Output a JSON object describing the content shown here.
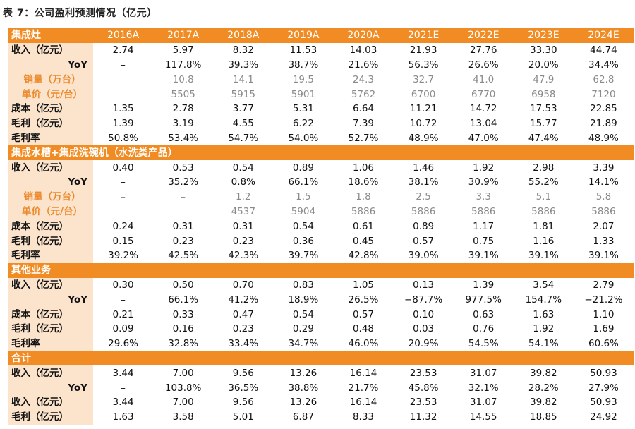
{
  "title": "表 7：公司盈利预测情况（亿元）",
  "header": {
    "label": "集成灶",
    "years": [
      "2016A",
      "2017A",
      "2018A",
      "2019A",
      "2020A",
      "2021E",
      "2022E",
      "2023E",
      "2024E"
    ]
  },
  "sections": [
    {
      "title": "",
      "rows": [
        {
          "label": "收入（亿元）",
          "style": "left",
          "values": [
            "2.74",
            "5.97",
            "8.32",
            "11.53",
            "14.03",
            "21.93",
            "27.76",
            "33.30",
            "44.74"
          ]
        },
        {
          "label": "YoY",
          "style": "right",
          "values": [
            "–",
            "117.8%",
            "39.3%",
            "38.7%",
            "21.6%",
            "56.3%",
            "26.6%",
            "20.0%",
            "34.4%"
          ]
        },
        {
          "label": "销量（万台）",
          "style": "sub",
          "values": [
            "–",
            "10.8",
            "14.1",
            "19.5",
            "24.3",
            "32.7",
            "41.0",
            "47.9",
            "62.8"
          ]
        },
        {
          "label": "单价（元/台）",
          "style": "sub",
          "values": [
            "–",
            "5505",
            "5915",
            "5901",
            "5762",
            "6700",
            "6770",
            "6958",
            "7120"
          ]
        },
        {
          "label": "成本（亿元）",
          "style": "left",
          "values": [
            "1.35",
            "2.78",
            "3.77",
            "5.31",
            "6.64",
            "11.21",
            "14.72",
            "17.53",
            "22.85"
          ]
        },
        {
          "label": "毛利（亿元）",
          "style": "left",
          "values": [
            "1.39",
            "3.19",
            "4.55",
            "6.22",
            "7.39",
            "10.72",
            "13.04",
            "15.77",
            "21.89"
          ]
        },
        {
          "label": "毛利率",
          "style": "left",
          "values": [
            "50.8%",
            "53.4%",
            "54.7%",
            "54.0%",
            "52.7%",
            "48.9%",
            "47.0%",
            "47.4%",
            "48.9%"
          ]
        }
      ]
    },
    {
      "title": "集成水槽+集成洗碗机（水洗类产品）",
      "rows": [
        {
          "label": "收入（亿元）",
          "style": "left",
          "values": [
            "0.40",
            "0.53",
            "0.54",
            "0.89",
            "1.06",
            "1.46",
            "1.92",
            "2.98",
            "3.39"
          ]
        },
        {
          "label": "YoY",
          "style": "right",
          "values": [
            "–",
            "35.2%",
            "0.8%",
            "66.1%",
            "18.6%",
            "38.1%",
            "30.9%",
            "55.2%",
            "14.1%"
          ]
        },
        {
          "label": "销量（万台）",
          "style": "sub",
          "values": [
            "–",
            "–",
            "1.2",
            "1.5",
            "1.8",
            "2.5",
            "3.3",
            "5.1",
            "5.8"
          ]
        },
        {
          "label": "单价（元/台）",
          "style": "sub",
          "values": [
            "–",
            "–",
            "4537",
            "5904",
            "5886",
            "5886",
            "5886",
            "5886",
            "5886"
          ]
        },
        {
          "label": "成本（亿元）",
          "style": "left",
          "values": [
            "0.24",
            "0.31",
            "0.31",
            "0.54",
            "0.61",
            "0.89",
            "1.17",
            "1.81",
            "2.07"
          ]
        },
        {
          "label": "毛利（亿元）",
          "style": "left",
          "values": [
            "0.15",
            "0.23",
            "0.23",
            "0.36",
            "0.45",
            "0.57",
            "0.75",
            "1.16",
            "1.33"
          ]
        },
        {
          "label": "毛利率",
          "style": "left",
          "values": [
            "39.2%",
            "42.5%",
            "42.3%",
            "39.7%",
            "42.8%",
            "39.0%",
            "39.1%",
            "39.1%",
            "39.1%"
          ]
        }
      ]
    },
    {
      "title": "其他业务",
      "rows": [
        {
          "label": "收入（亿元）",
          "style": "left",
          "values": [
            "0.30",
            "0.50",
            "0.70",
            "0.83",
            "1.05",
            "0.13",
            "1.39",
            "3.54",
            "2.79"
          ]
        },
        {
          "label": "YoY",
          "style": "right",
          "values": [
            "–",
            "66.1%",
            "41.2%",
            "18.9%",
            "26.5%",
            "−87.7%",
            "977.5%",
            "154.7%",
            "−21.2%"
          ]
        },
        {
          "label": "成本（亿元）",
          "style": "left",
          "values": [
            "0.21",
            "0.33",
            "0.47",
            "0.54",
            "0.57",
            "0.10",
            "0.63",
            "1.63",
            "1.10"
          ]
        },
        {
          "label": "毛利（亿元）",
          "style": "left",
          "values": [
            "0.09",
            "0.16",
            "0.23",
            "0.29",
            "0.48",
            "0.03",
            "0.76",
            "1.92",
            "1.69"
          ]
        },
        {
          "label": "毛利率",
          "style": "left",
          "values": [
            "29.6%",
            "32.8%",
            "33.4%",
            "34.7%",
            "46.0%",
            "20.9%",
            "54.5%",
            "54.1%",
            "60.6%"
          ]
        }
      ]
    },
    {
      "title": "合计",
      "rows": [
        {
          "label": "收入（亿元）",
          "style": "left",
          "values": [
            "3.44",
            "7.00",
            "9.56",
            "13.26",
            "16.14",
            "23.53",
            "31.07",
            "39.82",
            "50.93"
          ]
        },
        {
          "label": "YoY",
          "style": "right",
          "values": [
            "–",
            "103.8%",
            "36.5%",
            "38.8%",
            "21.7%",
            "45.8%",
            "32.1%",
            "28.2%",
            "27.9%"
          ]
        },
        {
          "label": "收入（亿元）",
          "style": "left",
          "values": [
            "3.44",
            "7.00",
            "9.56",
            "13.26",
            "16.14",
            "23.53",
            "31.07",
            "39.82",
            "50.93"
          ]
        },
        {
          "label": "毛利（亿元）",
          "style": "left",
          "values": [
            "1.63",
            "3.58",
            "5.01",
            "6.87",
            "8.33",
            "11.32",
            "14.55",
            "18.85",
            "24.92"
          ]
        }
      ]
    }
  ],
  "colors": {
    "header": "#f08c23",
    "label_bg": "#fbe3cc",
    "sub_label": "#ec8a2c",
    "grey_value": "#8a8a8a"
  }
}
